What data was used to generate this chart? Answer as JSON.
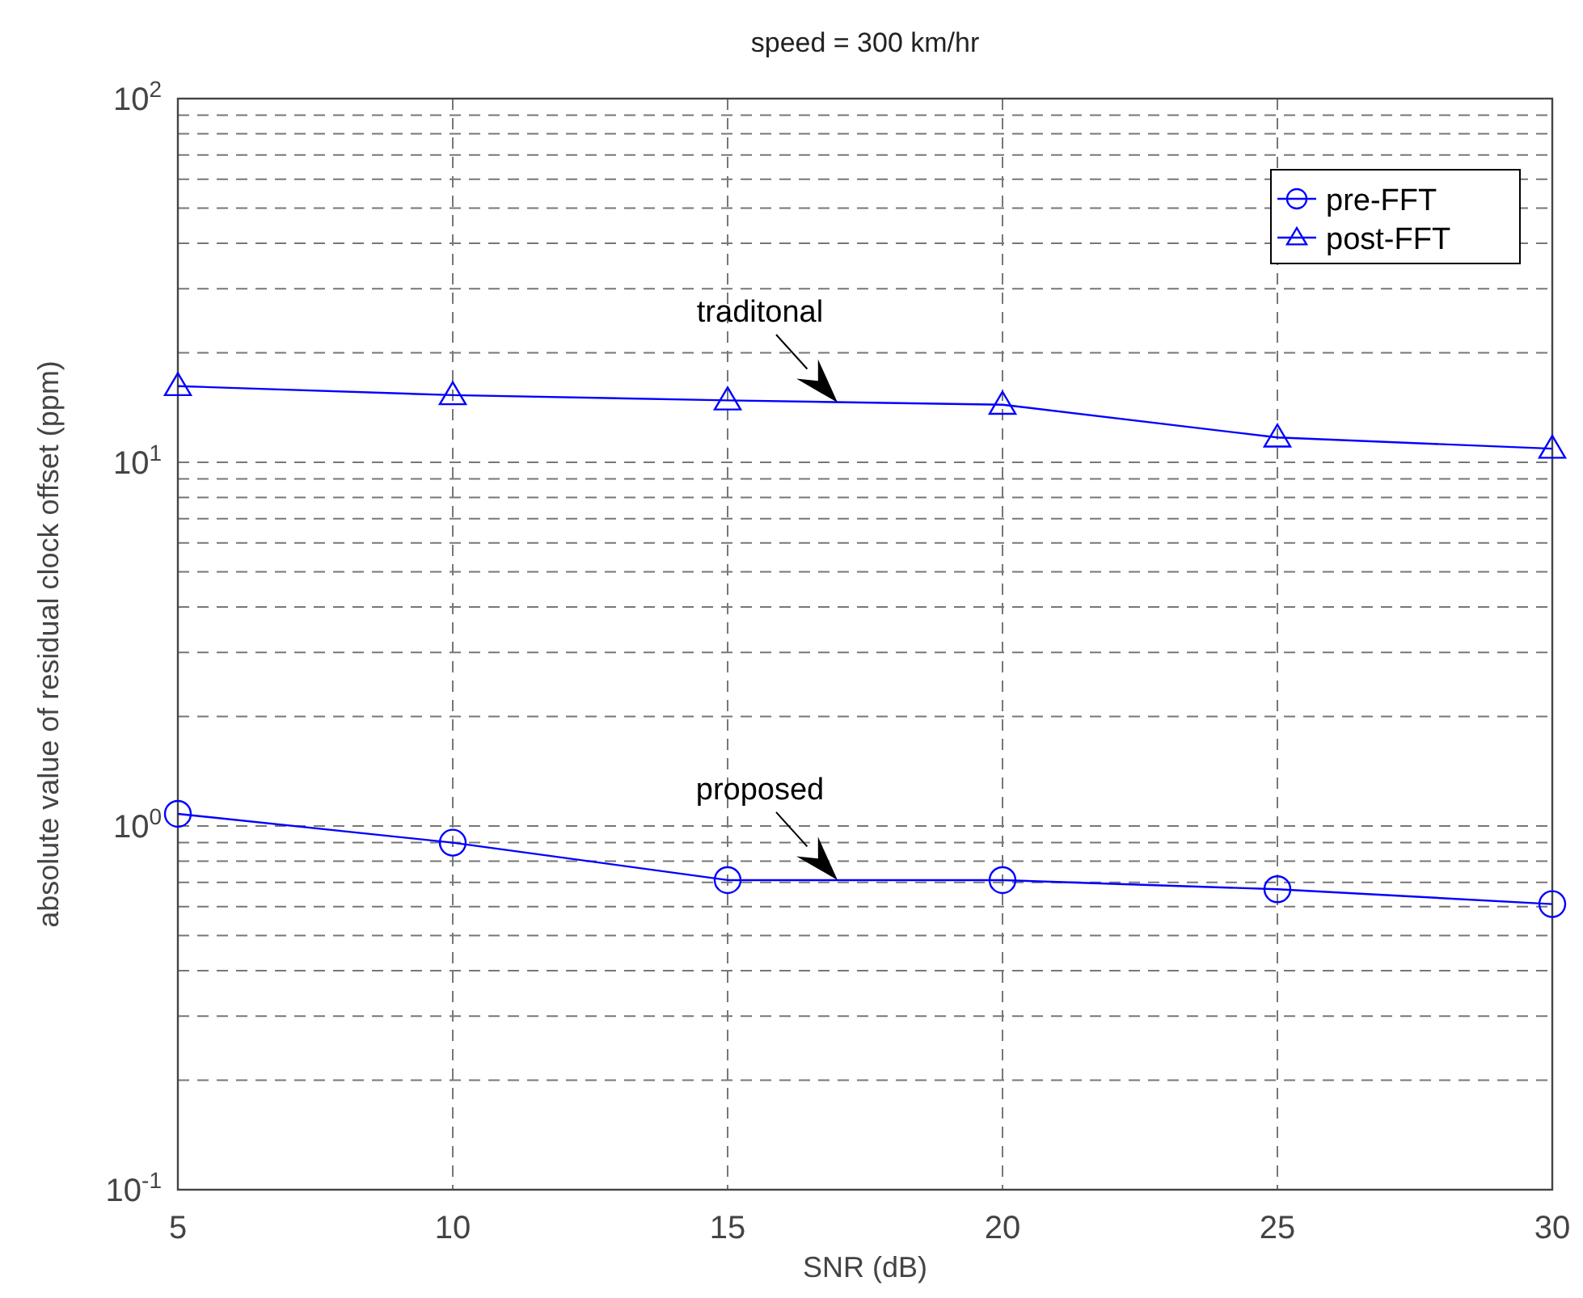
{
  "chart_data": {
    "type": "line",
    "title": "speed = 300 km/hr",
    "xlabel": "SNR (dB)",
    "ylabel": "absolute value of residual clock offset (ppm)",
    "x": [
      5,
      10,
      15,
      20,
      25,
      30
    ],
    "series": [
      {
        "name": "pre-FFT",
        "color": "#0000ff",
        "marker": "circle",
        "values": [
          1.08,
          0.9,
          0.71,
          0.71,
          0.67,
          0.61
        ]
      },
      {
        "name": "post-FFT",
        "color": "#0000ff",
        "marker": "triangle",
        "values": [
          16.2,
          15.3,
          14.8,
          14.4,
          11.7,
          10.9
        ]
      }
    ],
    "xlim": [
      5,
      30
    ],
    "xticks": [
      5,
      10,
      15,
      20,
      25,
      30
    ],
    "ylim": [
      0.1,
      100
    ],
    "yticks": [
      {
        "value": 0.1,
        "label": "10$^{-1}$"
      },
      {
        "value": 1,
        "label": "10$^{0}$"
      },
      {
        "value": 10,
        "label": "10$^{1}$"
      },
      {
        "value": 100,
        "label": "10$^{2}$"
      }
    ],
    "log": "y",
    "grid": true,
    "legend": "top right",
    "line_style": "solid",
    "annotations": [
      {
        "text": "traditonal",
        "x": 17,
        "y": 14.6
      },
      {
        "text": "proposed",
        "x": 17,
        "y": 0.71
      }
    ]
  }
}
